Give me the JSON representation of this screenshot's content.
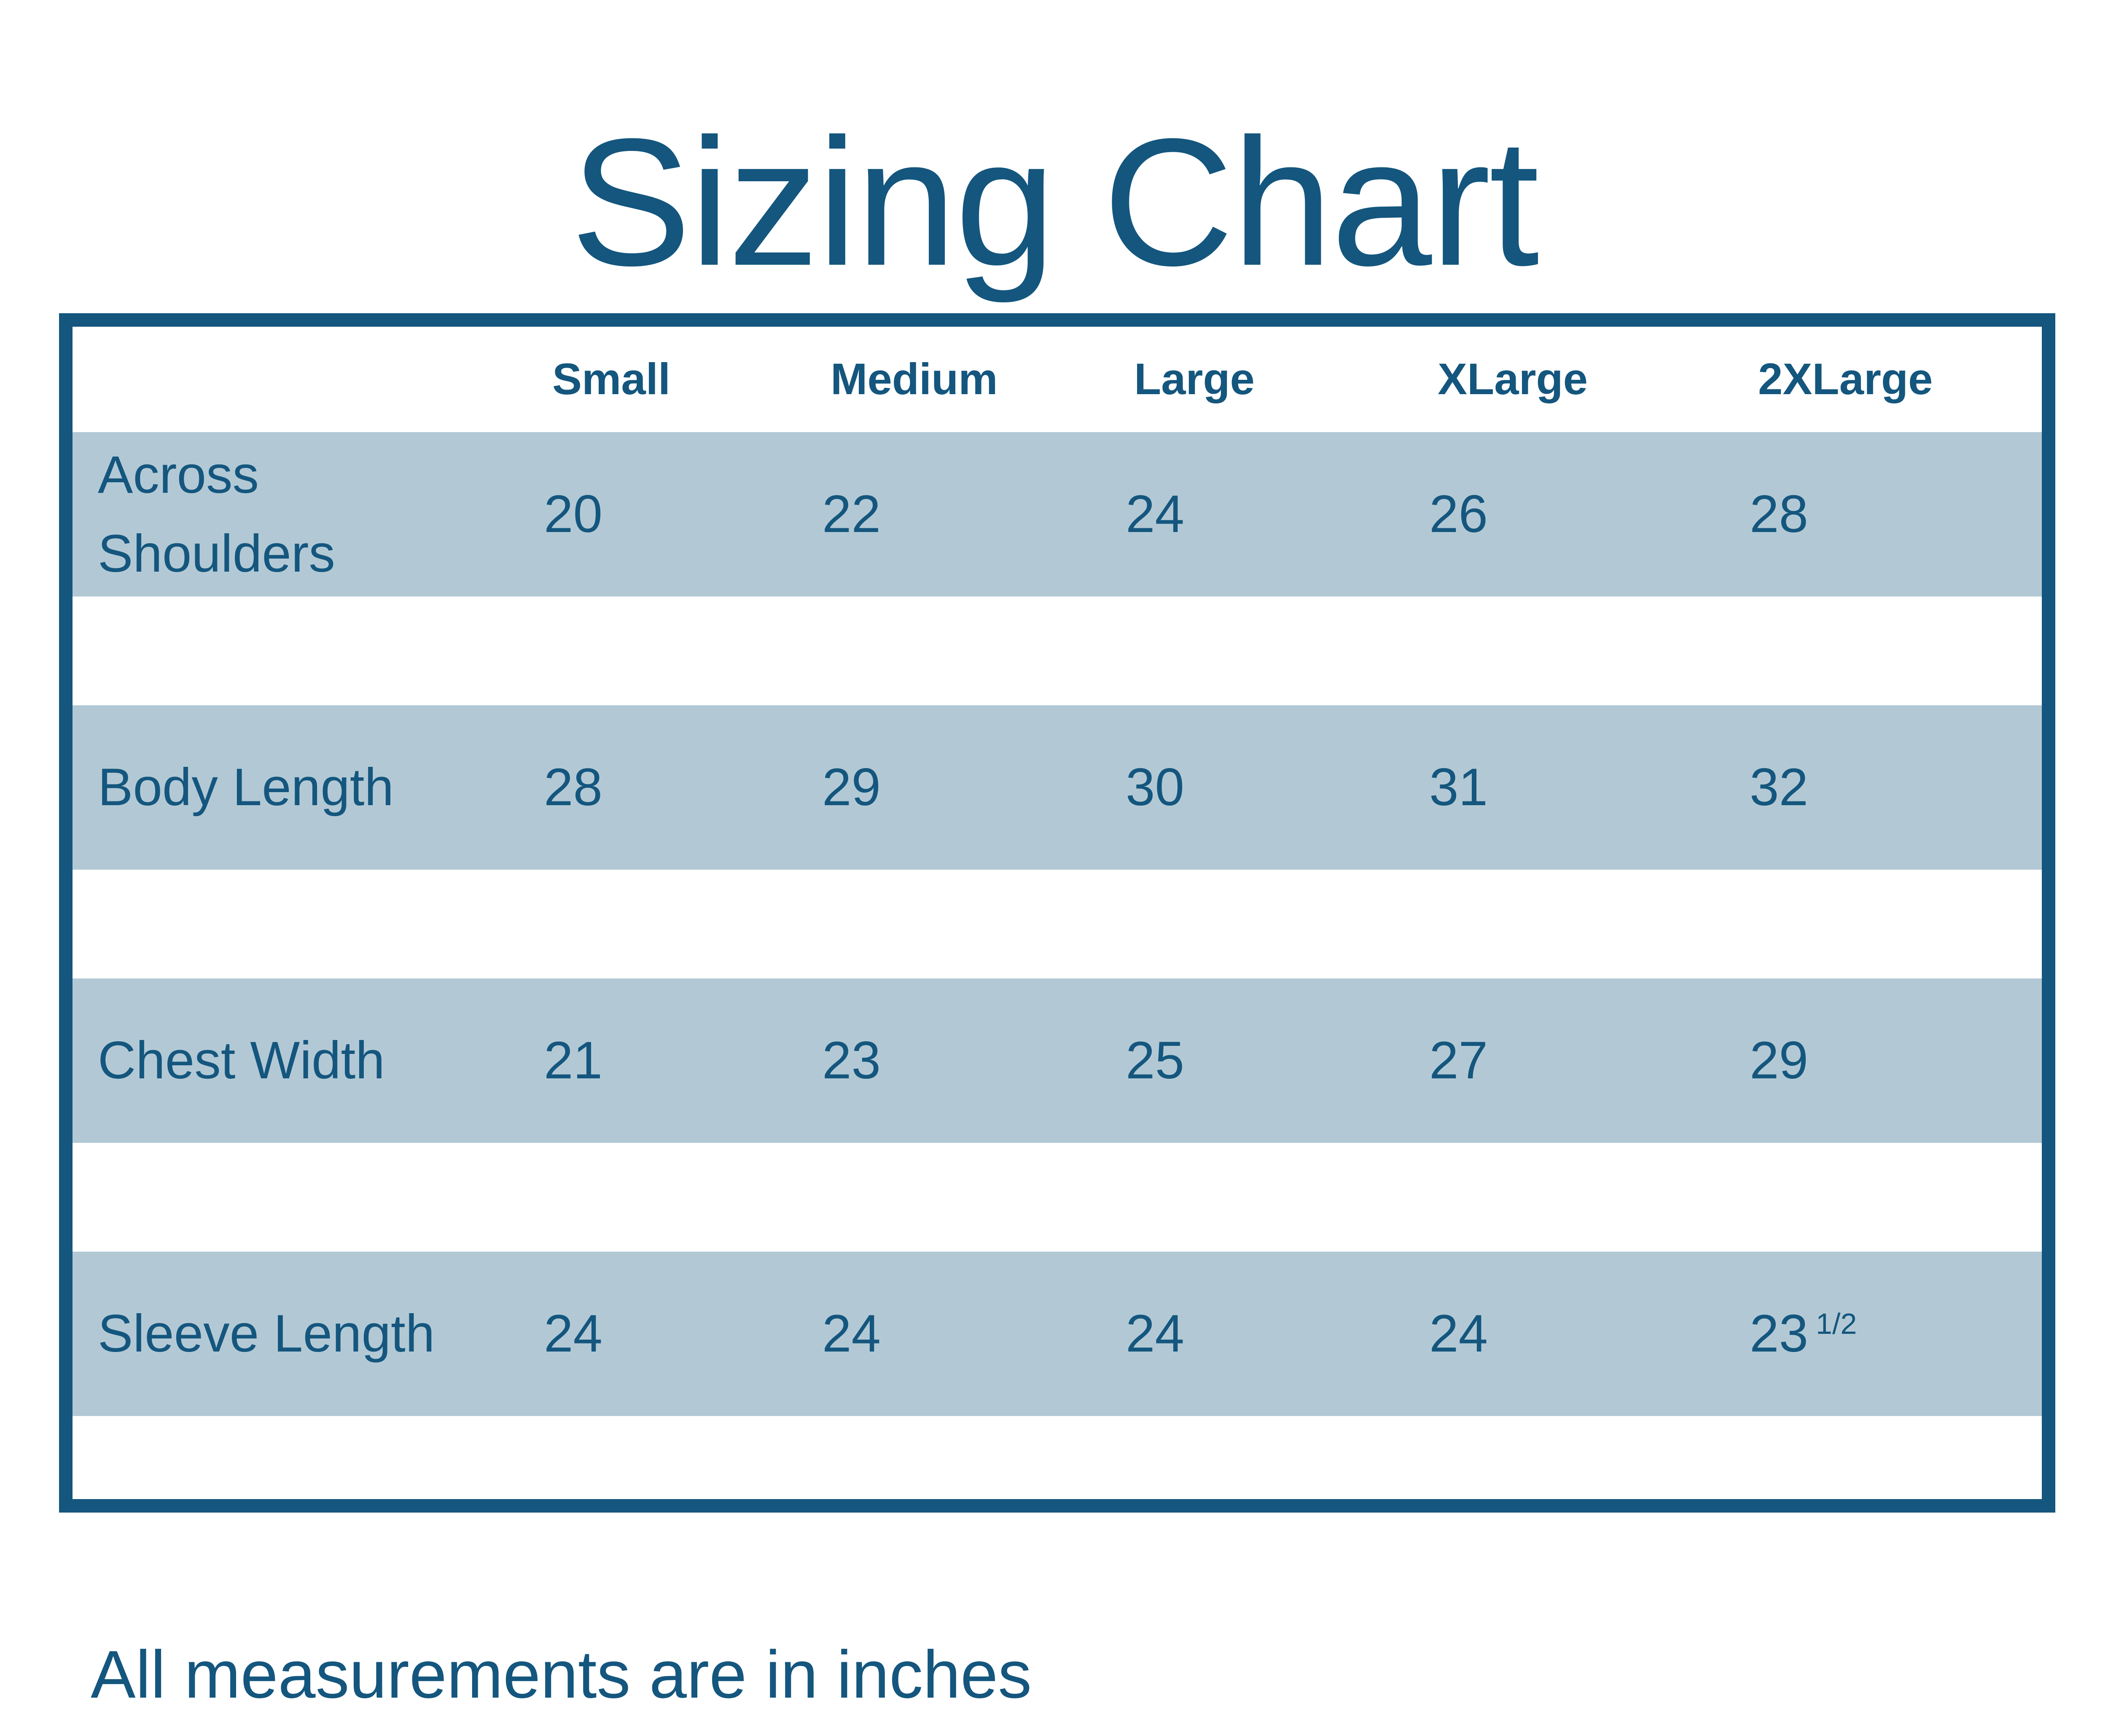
{
  "title": "Sizing Chart",
  "footer_note": "All measurements are in inches",
  "colors": {
    "navy": "#14567E",
    "row_blue": "#B2C9D5",
    "background": "#FFFFFF"
  },
  "table": {
    "columns": [
      "Small",
      "Medium",
      "Large",
      "XLarge",
      "2XLarge"
    ],
    "rows": [
      {
        "label": "Across Shoulders",
        "values": [
          "20",
          "22",
          "24",
          "26",
          "28"
        ]
      },
      {
        "label": "Body Length",
        "values": [
          "28",
          "29",
          "30",
          "31",
          "32"
        ]
      },
      {
        "label": "Chest Width",
        "values": [
          "21",
          "23",
          "25",
          "27",
          "29"
        ]
      },
      {
        "label": "Sleeve Length",
        "values": [
          "24",
          "24",
          "24",
          "24",
          "23"
        ],
        "sup": "1/2"
      }
    ]
  },
  "chart_data": {
    "type": "table",
    "title": "Sizing Chart",
    "columns": [
      "Small",
      "Medium",
      "Large",
      "XLarge",
      "2XLarge"
    ],
    "rows": [
      {
        "label": "Across Shoulders",
        "values": [
          20,
          22,
          24,
          26,
          28
        ]
      },
      {
        "label": "Body Length",
        "values": [
          28,
          29,
          30,
          31,
          32
        ]
      },
      {
        "label": "Chest Width",
        "values": [
          21,
          23,
          25,
          27,
          29
        ]
      },
      {
        "label": "Sleeve Length",
        "values": [
          24,
          24,
          24,
          24,
          23.5
        ]
      }
    ],
    "note": "All measurements are in inches",
    "layout": {
      "header_background": "#FFFFFF",
      "row_background": "#B2C9D5",
      "border_color": "#14567E",
      "grid": "banded-rows"
    }
  }
}
